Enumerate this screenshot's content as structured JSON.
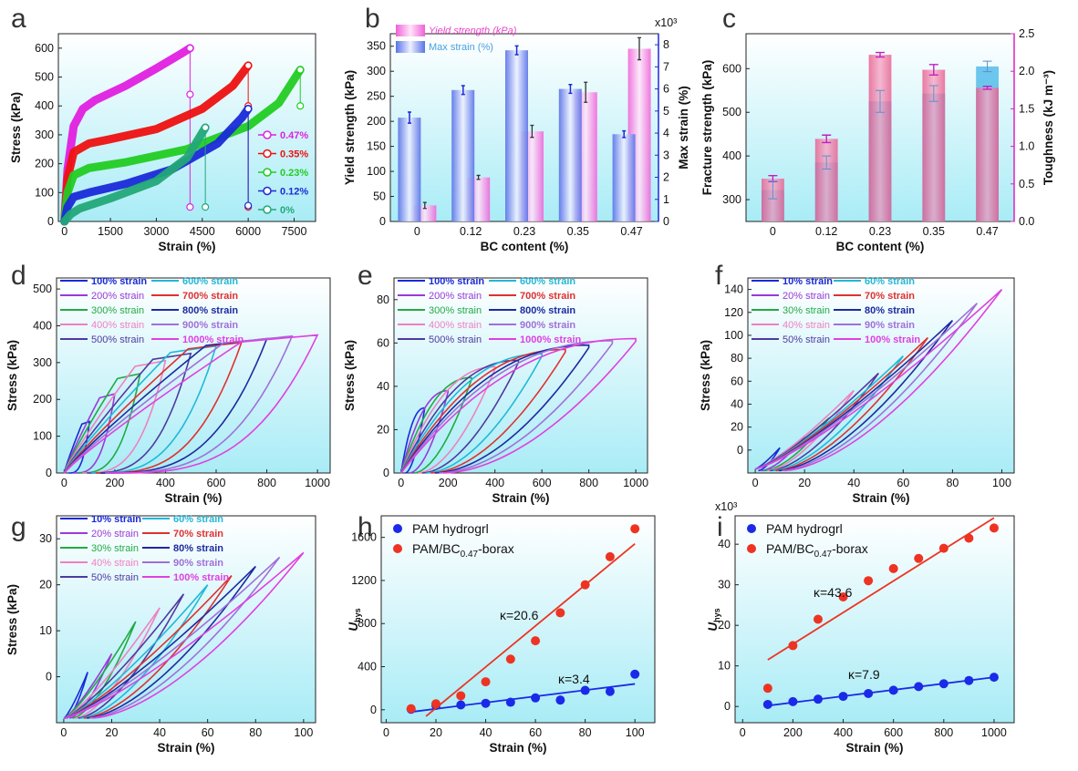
{
  "chart_data": [
    {
      "panel": "a",
      "type": "line",
      "xlabel": "Strain (%)",
      "ylabel": "Stress (kPa)",
      "xticks": [
        0,
        1500,
        3000,
        4500,
        6000,
        7500
      ],
      "yticks": [
        0,
        100,
        200,
        300,
        400,
        500,
        600
      ],
      "xlim": [
        -200,
        8200
      ],
      "ylim": [
        0,
        650
      ],
      "series": [
        {
          "name": "0.47%",
          "color": "#e020e0",
          "x": [
            0,
            100,
            300,
            600,
            1000,
            2000,
            3000,
            3800,
            4100
          ],
          "y": [
            0,
            180,
            330,
            390,
            420,
            470,
            530,
            580,
            600
          ],
          "break": [
            [
              4100,
              600
            ],
            [
              4100,
              440
            ],
            [
              4100,
              50
            ]
          ]
        },
        {
          "name": "0.35%",
          "color": "#ee1111",
          "x": [
            0,
            100,
            300,
            800,
            1500,
            3000,
            4500,
            5500,
            6000
          ],
          "y": [
            0,
            150,
            240,
            270,
            285,
            320,
            390,
            470,
            540
          ],
          "break": [
            [
              6000,
              540
            ],
            [
              6000,
              400
            ],
            [
              6000,
              50
            ]
          ]
        },
        {
          "name": "0.23%",
          "color": "#22cc22",
          "x": [
            0,
            100,
            300,
            800,
            2000,
            4000,
            6000,
            7000,
            7700
          ],
          "y": [
            0,
            100,
            160,
            185,
            205,
            250,
            330,
            410,
            525
          ],
          "break": [
            [
              7700,
              525
            ],
            [
              7700,
              400
            ]
          ]
        },
        {
          "name": "0.12%",
          "color": "#1a2ad8",
          "x": [
            0,
            100,
            300,
            800,
            2000,
            3500,
            5000,
            5800,
            6000
          ],
          "y": [
            0,
            50,
            85,
            100,
            130,
            180,
            270,
            360,
            390
          ],
          "break": [
            [
              6000,
              390
            ],
            [
              6000,
              55
            ]
          ]
        },
        {
          "name": "0%",
          "color": "#22a877",
          "x": [
            0,
            200,
            500,
            1500,
            3000,
            4000,
            4600
          ],
          "y": [
            0,
            25,
            45,
            80,
            140,
            220,
            325
          ],
          "break": [
            [
              4600,
              325
            ],
            [
              4600,
              50
            ]
          ]
        }
      ]
    },
    {
      "panel": "b",
      "type": "bar",
      "xlabel": "BC content (%)",
      "ylabel": "Yield strength (kPa)",
      "ylabel2": "Max strain (%)",
      "exp2": "x10³",
      "categories": [
        "0",
        "0.12",
        "0.23",
        "0.35",
        "0.47"
      ],
      "yticks": [
        0,
        50,
        100,
        150,
        200,
        250,
        300,
        350
      ],
      "y2ticks": [
        0,
        1,
        2,
        3,
        4,
        5,
        6,
        7,
        8
      ],
      "ylim": [
        0,
        375
      ],
      "y2lim": [
        0,
        8.5
      ],
      "series": [
        {
          "name": "Yield strength (kPa)",
          "color": "#f060d8",
          "values": [
            32,
            88,
            180,
            258,
            345
          ],
          "err": [
            6,
            4,
            12,
            20,
            22
          ]
        },
        {
          "name": "Max strain (%)",
          "color": "#5a72e8",
          "values": [
            4.7,
            5.95,
            7.75,
            6.0,
            3.95
          ],
          "err": [
            0.25,
            0.2,
            0.2,
            0.2,
            0.15
          ]
        }
      ]
    },
    {
      "panel": "c",
      "type": "bar",
      "xlabel": "BC content (%)",
      "ylabel": "Fracture strength (kPa)",
      "ylabel2": "Toughness (kJ m⁻³)",
      "categories": [
        "0",
        "0.12",
        "0.23",
        "0.35",
        "0.47"
      ],
      "yticks": [
        300,
        400,
        500,
        600
      ],
      "y2ticks": [
        0.0,
        0.5,
        1.0,
        1.5,
        2.0,
        2.5
      ],
      "ylim": [
        250,
        680
      ],
      "y2lim": [
        0,
        2.5
      ],
      "series": [
        {
          "name": "Fracture strength (kPa)",
          "color": "#55bdea",
          "values": [
            322,
            385,
            525,
            543,
            605
          ],
          "err": [
            20,
            15,
            25,
            18,
            12
          ]
        },
        {
          "name": "Toughness (kJ m⁻³)",
          "color": "#e85a8c",
          "values": [
            0.57,
            1.1,
            2.22,
            2.02,
            1.78
          ],
          "err": [
            0.04,
            0.05,
            0.03,
            0.07,
            0.02
          ]
        }
      ]
    },
    {
      "panel": "d",
      "type": "line",
      "xlabel": "Strain (%)",
      "ylabel": "Stress (kPa)",
      "xticks": [
        0,
        200,
        400,
        600,
        800,
        1000
      ],
      "yticks": [
        0,
        100,
        200,
        300,
        400,
        500
      ],
      "xlim": [
        -30,
        1050
      ],
      "ylim": [
        0,
        530
      ],
      "legend": [
        "100% strain",
        "600% strain",
        "200% strain",
        "700% strain",
        "300% strain",
        "800% strain",
        "400% strain",
        "900% strain",
        "500% strain",
        "1000% strain"
      ],
      "maxes": [
        100,
        200,
        300,
        400,
        500,
        600,
        700,
        800,
        900,
        1000
      ],
      "peaks": [
        140,
        215,
        270,
        305,
        325,
        345,
        355,
        365,
        372,
        375
      ]
    },
    {
      "panel": "e",
      "type": "line",
      "xlabel": "Strain (%)",
      "ylabel": "Stress (kPa)",
      "xticks": [
        0,
        200,
        400,
        600,
        800,
        1000
      ],
      "yticks": [
        0,
        20,
        40,
        60,
        80
      ],
      "xlim": [
        -30,
        1050
      ],
      "ylim": [
        0,
        90
      ],
      "legend": [
        "100% strain",
        "600% strain",
        "200% strain",
        "700% strain",
        "300% strain",
        "800% strain",
        "400% strain",
        "900% strain",
        "500% strain",
        "1000% strain"
      ],
      "maxes": [
        100,
        200,
        300,
        400,
        500,
        600,
        700,
        800,
        900,
        1000
      ],
      "peaks": [
        30,
        38,
        44,
        49,
        52,
        55,
        57,
        59,
        61,
        62
      ]
    },
    {
      "panel": "f",
      "type": "line",
      "xlabel": "Strain (%)",
      "ylabel": "Stress (kPa)",
      "xticks": [
        0,
        20,
        40,
        60,
        80,
        100
      ],
      "yticks": [
        0,
        20,
        40,
        60,
        80,
        100,
        120,
        140
      ],
      "xlim": [
        -3,
        105
      ],
      "ylim": [
        -20,
        150
      ],
      "legend": [
        "10% strain",
        "60% strain",
        "20% strain",
        "70% strain",
        "30% strain",
        "80% strain",
        "40% strain",
        "90% strain",
        "50% strain",
        "100% strain"
      ],
      "maxes": [
        10,
        20,
        30,
        40,
        50,
        60,
        70,
        80,
        90,
        100
      ],
      "peaks": [
        2,
        12,
        28,
        52,
        67,
        82,
        98,
        113,
        128,
        140
      ]
    },
    {
      "panel": "g",
      "type": "line",
      "xlabel": "Strain (%)",
      "ylabel": "Stress (kPa)",
      "xticks": [
        0,
        20,
        40,
        60,
        80,
        100
      ],
      "yticks": [
        0,
        10,
        20,
        30
      ],
      "xlim": [
        -3,
        105
      ],
      "ylim": [
        -10,
        35
      ],
      "legend": [
        "10% strain",
        "60% strain",
        "20% strain",
        "70% strain",
        "30% strain",
        "80% strain",
        "40% strain",
        "90% strain",
        "50% strain",
        "100% strain"
      ],
      "maxes": [
        10,
        20,
        30,
        40,
        50,
        60,
        70,
        80,
        90,
        100
      ],
      "peaks": [
        1,
        5,
        12,
        15,
        18,
        20,
        22,
        24,
        26,
        27
      ]
    },
    {
      "panel": "h",
      "type": "scatter",
      "xlabel": "Strain (%)",
      "ylabel": "U",
      "ysub": "hys",
      "xticks": [
        0,
        20,
        40,
        60,
        80,
        100
      ],
      "yticks": [
        0,
        400,
        800,
        1200,
        1600
      ],
      "xlim": [
        -2,
        108
      ],
      "ylim": [
        -120,
        1800
      ],
      "series": [
        {
          "name": "PAM hydrogrl",
          "color": "#1a2ae8",
          "x": [
            10,
            20,
            30,
            40,
            50,
            60,
            70,
            80,
            90,
            100
          ],
          "y": [
            5,
            40,
            45,
            60,
            70,
            110,
            90,
            180,
            170,
            330
          ],
          "fit": [
            [
              10,
              -20
            ],
            [
              100,
              240
            ]
          ],
          "label": "κ=3.4"
        },
        {
          "name": "PAM/BC",
          "sub": "0.47",
          "suffix": "-borax",
          "color": "#ee3322",
          "x": [
            10,
            20,
            30,
            40,
            50,
            60,
            70,
            80,
            90,
            100
          ],
          "y": [
            10,
            55,
            130,
            260,
            470,
            640,
            900,
            1160,
            1420,
            1680
          ],
          "fit": [
            [
              16,
              -60
            ],
            [
              100,
              1540
            ]
          ],
          "label": "κ=20.6"
        }
      ]
    },
    {
      "panel": "i",
      "type": "scatter",
      "xlabel": "Strain (%)",
      "ylabel": "U",
      "ysub": "hys",
      "exp": "x10³",
      "xticks": [
        0,
        200,
        400,
        600,
        800,
        1000
      ],
      "yticks": [
        0,
        10,
        20,
        30,
        40
      ],
      "xlim": [
        -30,
        1080
      ],
      "ylim": [
        -4,
        47
      ],
      "series": [
        {
          "name": "PAM hydrogrl",
          "color": "#1a2ae8",
          "x": [
            100,
            200,
            300,
            400,
            500,
            600,
            700,
            800,
            900,
            1000
          ],
          "y": [
            0.5,
            1.2,
            1.8,
            2.5,
            3.2,
            4.0,
            4.9,
            5.6,
            6.4,
            7.2
          ],
          "fit": [
            [
              100,
              0.2
            ],
            [
              1000,
              7.2
            ]
          ],
          "label": "κ=7.9"
        },
        {
          "name": "PAM/BC",
          "sub": "0.47",
          "suffix": "-borax",
          "color": "#ee3322",
          "x": [
            100,
            200,
            300,
            400,
            500,
            600,
            700,
            800,
            900,
            1000
          ],
          "y": [
            4.5,
            15,
            21.5,
            27,
            31,
            34,
            36.5,
            39,
            41.5,
            44
          ],
          "fit": [
            [
              100,
              11.5
            ],
            [
              1000,
              46.5
            ]
          ],
          "label": "κ=43.6"
        }
      ]
    }
  ],
  "panel_letters": [
    "a",
    "b",
    "c",
    "d",
    "e",
    "f",
    "g",
    "h",
    "i"
  ]
}
